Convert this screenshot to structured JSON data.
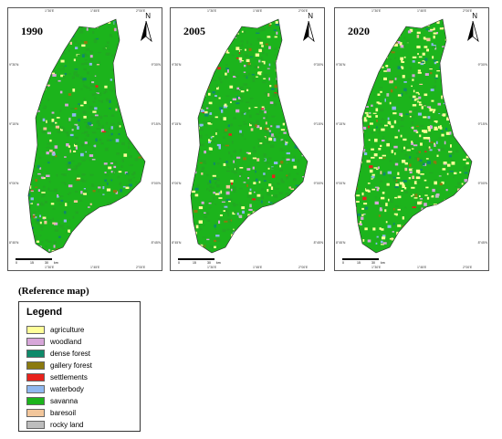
{
  "maps": [
    {
      "year": "1990",
      "agri_ratio": 0.08
    },
    {
      "year": "2005",
      "agri_ratio": 0.22
    },
    {
      "year": "2020",
      "agri_ratio": 0.45
    }
  ],
  "north_label": "N",
  "reference_caption": "(Reference map)",
  "legend": {
    "title": "Legend",
    "items": [
      {
        "label": "agriculture",
        "color": "#ffff99"
      },
      {
        "label": "woodland",
        "color": "#d7a6d9"
      },
      {
        "label": "dense forest",
        "color": "#0f8a6a"
      },
      {
        "label": "gallery forest",
        "color": "#8b7a0f"
      },
      {
        "label": "settlements",
        "color": "#e8221c"
      },
      {
        "label": "waterbody",
        "color": "#8fb8f0"
      },
      {
        "label": "savanna",
        "color": "#1cb41c"
      },
      {
        "label": "baresoil",
        "color": "#f2c69b"
      },
      {
        "label": "rocky land",
        "color": "#bdbdbd"
      }
    ]
  },
  "scale": {
    "ticks": [
      "0",
      "15",
      "30"
    ],
    "unit": "km"
  },
  "coords": {
    "top": [
      "1°30'E",
      "1°45'E",
      "2°00'E"
    ],
    "side": [
      "9°30'N",
      "9°15'N",
      "9°00'N",
      "8°45'N"
    ]
  }
}
